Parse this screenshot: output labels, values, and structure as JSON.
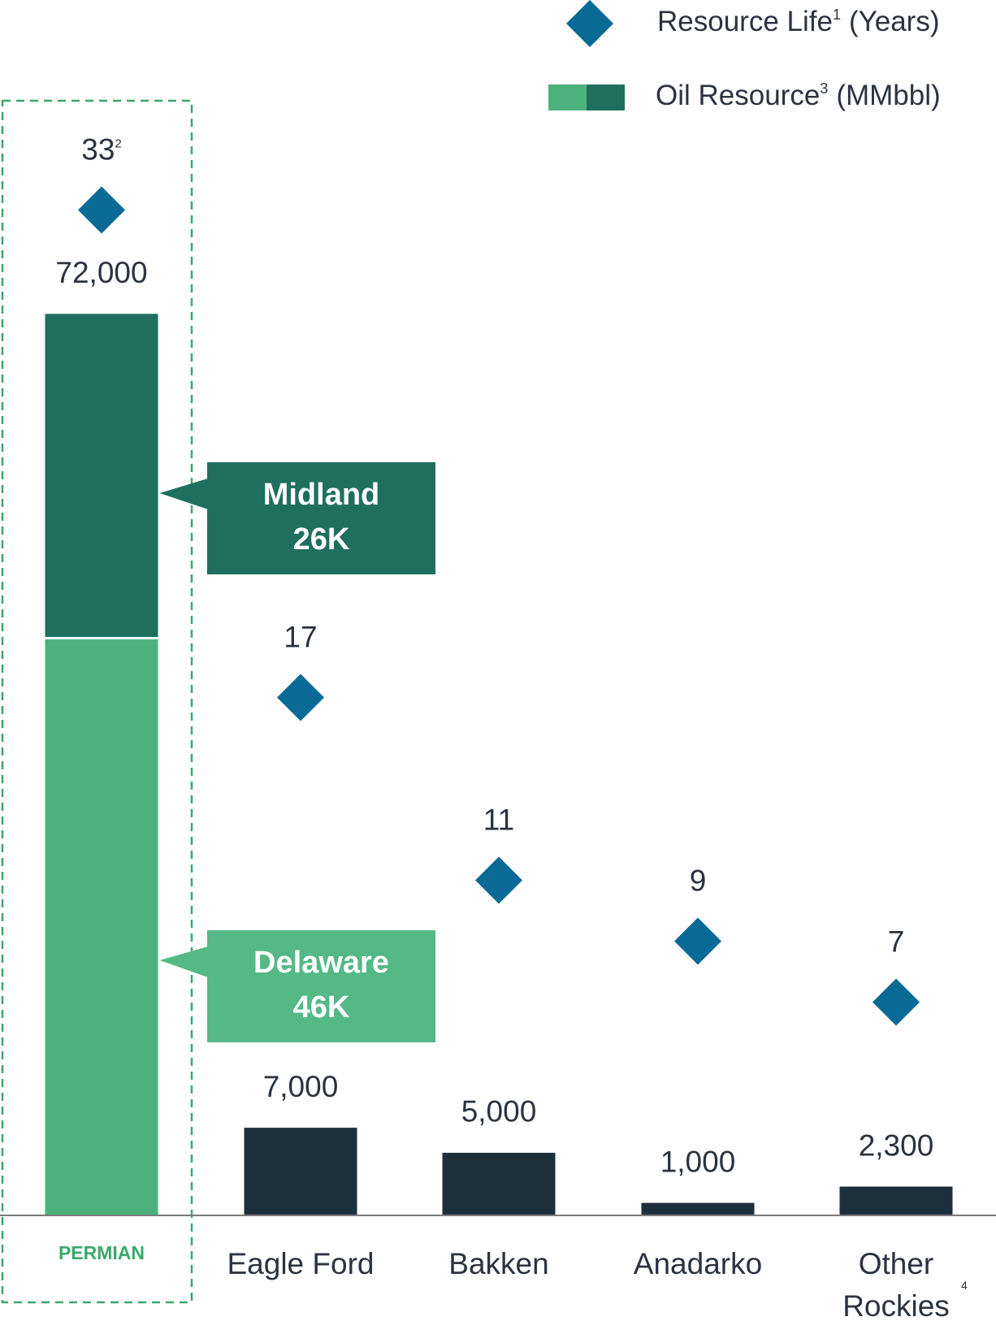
{
  "chart_data": {
    "type": "combo",
    "categories": [
      "PERMIAN",
      "Eagle Ford",
      "Bakken",
      "Anadarko",
      "Other Rockies"
    ],
    "category_notes": [
      null,
      null,
      null,
      null,
      "4"
    ],
    "highlight_color": "#3aa86b",
    "ylim": [
      0,
      80000
    ],
    "y2lim": [
      0,
      40
    ],
    "series": [
      {
        "name": "Oil Resource",
        "name_note": "3",
        "unit": "(MMbbl)",
        "color": "#1e2f3c",
        "values": [
          72000,
          7000,
          5000,
          1000,
          2300
        ],
        "value_labels": [
          "72,000",
          "7,000",
          "5,000",
          "1,000",
          "2,300"
        ],
        "segments": [
          {
            "name": "Delaware",
            "value": 46000,
            "value_label": "46K",
            "color": "#4db17d",
            "callout_color": "#55b985"
          },
          {
            "name": "Midland",
            "value": 26000,
            "value_label": "26K",
            "color": "#1f6f5f",
            "callout_color": "#1f6f5f"
          }
        ]
      },
      {
        "name": "Resource Life",
        "name_note": "1",
        "unit": "(Years)",
        "axis": "y2",
        "color": "#0a6a96",
        "values": [
          33,
          17,
          11,
          9,
          7
        ],
        "value_notes": [
          "2",
          null,
          null,
          null,
          null
        ]
      }
    ]
  }
}
